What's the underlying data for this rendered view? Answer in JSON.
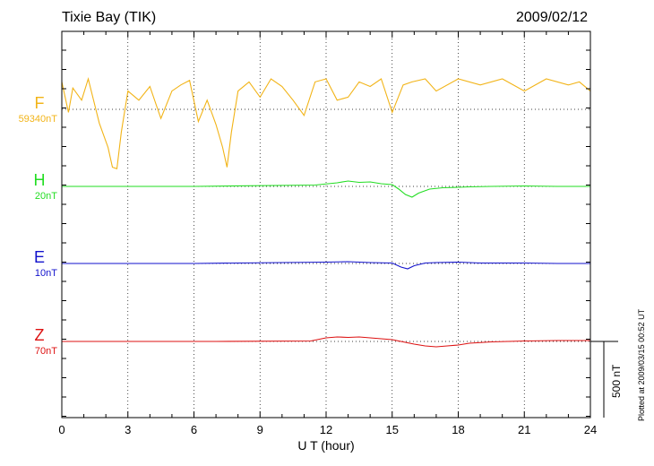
{
  "header": {
    "station": "Tixie Bay (TIK)",
    "date": "2009/02/12"
  },
  "footer": {
    "plotted": "Plotted at 2009/03/15 00:52 UT",
    "scale": "500 nT"
  },
  "chart_data": {
    "type": "line",
    "xlabel": "U T (hour)",
    "xlim": [
      0,
      24
    ],
    "xticks": [
      "0",
      "3",
      "6",
      "9",
      "12",
      "15",
      "18",
      "21",
      "24"
    ],
    "colors": {
      "F": "#f2b418",
      "H": "#22dd22",
      "E": "#1111cc",
      "Z": "#dd1111"
    },
    "series": [
      {
        "name": "F",
        "baseline": "59340nT",
        "x": [
          0,
          0.3,
          0.5,
          0.9,
          1.2,
          1.7,
          2.1,
          2.3,
          2.5,
          2.7,
          3.0,
          3.5,
          4.0,
          4.5,
          5.0,
          5.4,
          5.8,
          6.2,
          6.6,
          7.0,
          7.3,
          7.5,
          7.7,
          8.0,
          8.5,
          9.0,
          9.5,
          10.0,
          10.5,
          11.0,
          11.5,
          12.0,
          12.5,
          13.0,
          13.5,
          14.0,
          14.5,
          15.0,
          15.5,
          15.9,
          16.5,
          17.0,
          18.0,
          19.0,
          20.0,
          21.0,
          22.0,
          23.0,
          23.5,
          24.0
        ],
        "y": [
          180,
          -20,
          140,
          60,
          200,
          -90,
          -250,
          -380,
          -390,
          -150,
          120,
          60,
          150,
          -60,
          120,
          160,
          190,
          -80,
          60,
          -100,
          -250,
          -380,
          -150,
          120,
          180,
          80,
          200,
          150,
          60,
          -40,
          180,
          200,
          60,
          80,
          180,
          150,
          200,
          -20,
          160,
          180,
          200,
          120,
          200,
          160,
          200,
          120,
          200,
          160,
          180,
          120
        ]
      },
      {
        "name": "H",
        "baseline": "20nT",
        "x": [
          0,
          6,
          11.5,
          12.5,
          13.0,
          13.5,
          14.0,
          14.5,
          15.0,
          15.3,
          15.6,
          15.9,
          16.2,
          16.7,
          17.3,
          18.0,
          18.5,
          19.5,
          21,
          22.5,
          24
        ],
        "y": [
          0,
          0,
          0.3,
          0.8,
          1.2,
          0.9,
          1.0,
          0.6,
          0.4,
          -0.6,
          -1.8,
          -2.4,
          -1.5,
          -0.6,
          -0.3,
          -0.2,
          -0.1,
          0,
          0.1,
          0,
          0
        ]
      },
      {
        "name": "E",
        "baseline": "10nT",
        "x": [
          0,
          6,
          12,
          13,
          14,
          15,
          15.4,
          15.7,
          16.0,
          16.5,
          17,
          18,
          19,
          21,
          22.5,
          24
        ],
        "y": [
          0,
          0,
          0.3,
          0.4,
          0.2,
          0.1,
          -0.8,
          -1.2,
          -0.5,
          0.1,
          0.2,
          0.3,
          0.1,
          0.1,
          0,
          0
        ]
      },
      {
        "name": "Z",
        "baseline": "70nT",
        "x": [
          0,
          4,
          7,
          11.3,
          12,
          12.5,
          13,
          13.5,
          14,
          14.5,
          15,
          15.5,
          16.0,
          16.5,
          17,
          17.5,
          18,
          18.5,
          19.5,
          21,
          22.5,
          24
        ],
        "y": [
          0,
          0,
          0,
          0.1,
          0.8,
          1.0,
          0.9,
          1.0,
          0.8,
          0.6,
          0.4,
          -0.1,
          -0.6,
          -1.0,
          -1.2,
          -1.0,
          -0.8,
          -0.4,
          -0.1,
          0.1,
          0.2,
          0.2
        ]
      }
    ]
  }
}
